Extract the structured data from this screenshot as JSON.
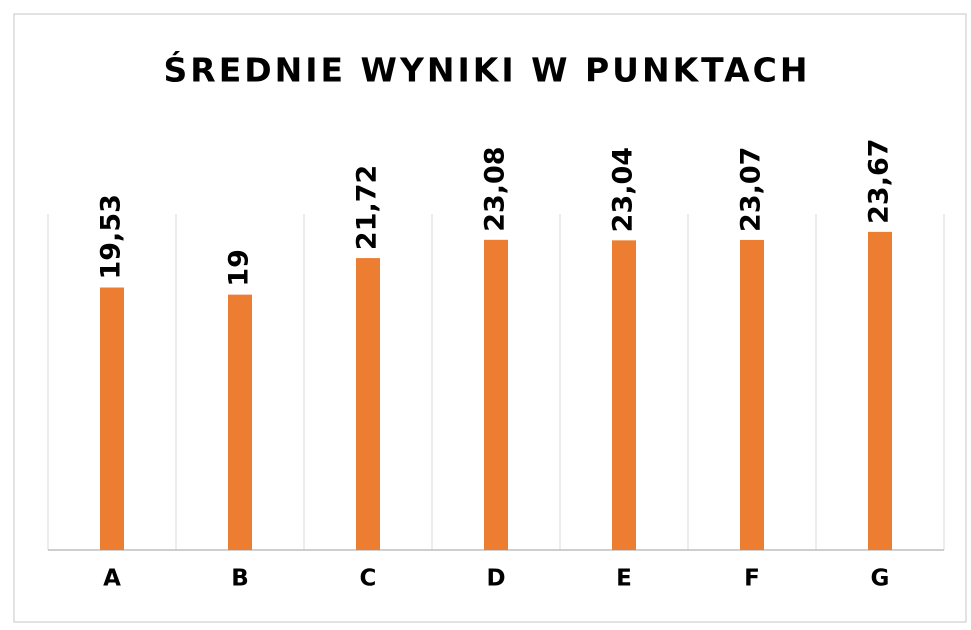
{
  "chart_data": {
    "type": "bar",
    "title": "ŚREDNIE WYNIKI W PUNKTACH",
    "categories": [
      "A",
      "B",
      "C",
      "D",
      "E",
      "F",
      "G"
    ],
    "values": [
      19.53,
      19,
      21.72,
      23.08,
      23.04,
      23.07,
      23.67
    ],
    "value_labels": [
      "19,53",
      "19",
      "21,72",
      "23,08",
      "23,04",
      "23,07",
      "23,67"
    ],
    "color": "#ed7d31",
    "ylim": [
      0,
      25
    ]
  }
}
